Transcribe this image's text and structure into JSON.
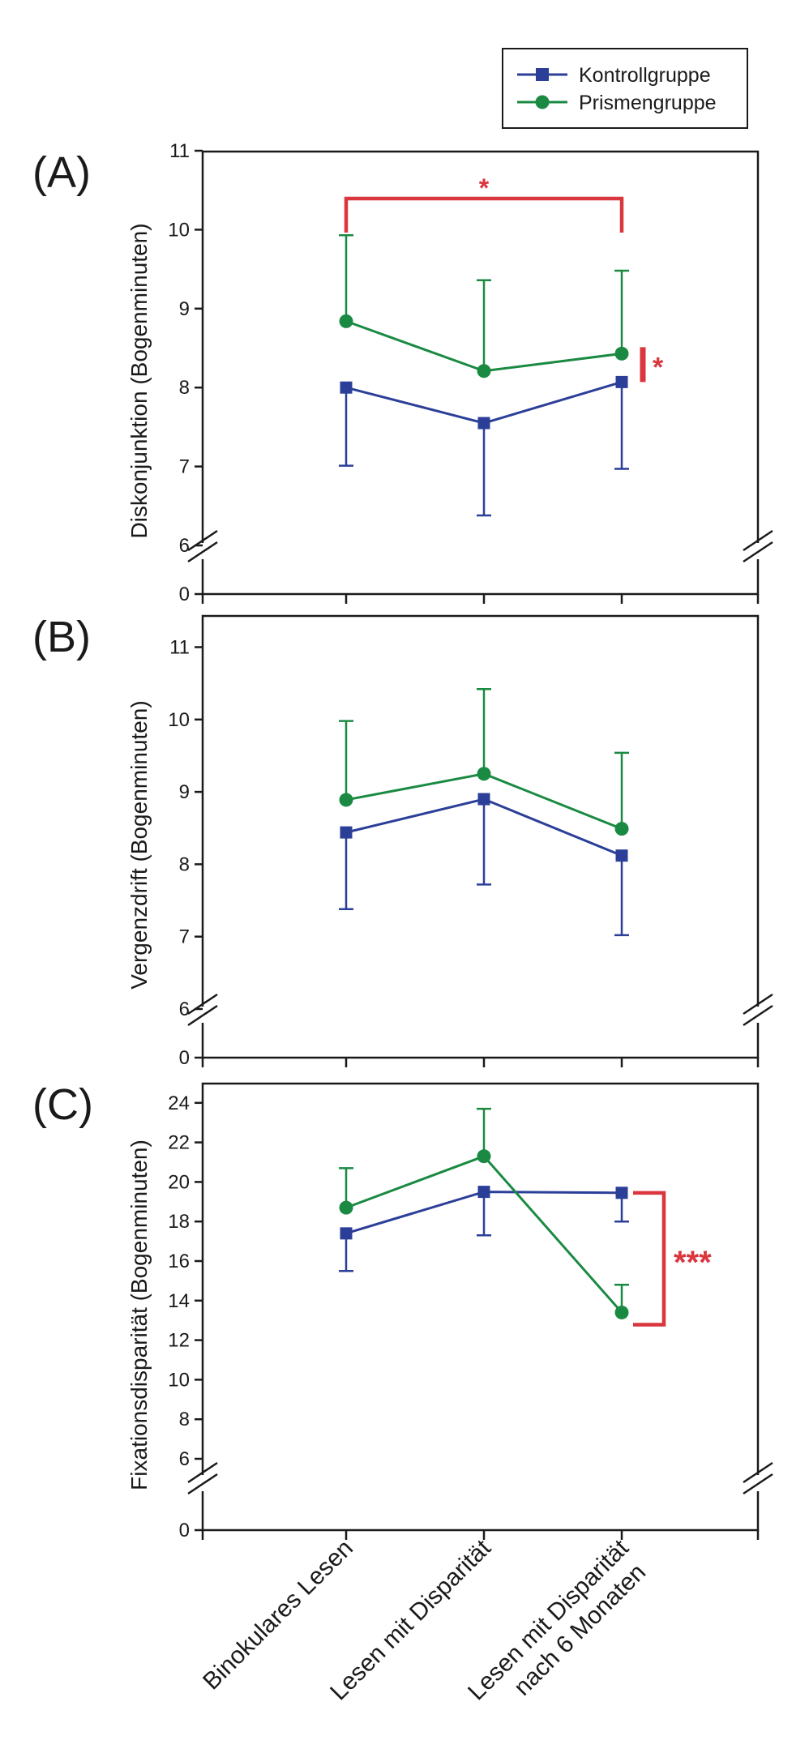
{
  "colors": {
    "kontroll": "#2b3f98",
    "prismen": "#1a8a42",
    "significance": "#d9363e",
    "axis": "#1a1a1a"
  },
  "legend": {
    "items": [
      {
        "label": "Kontrollgruppe",
        "marker": "square"
      },
      {
        "label": "Prismengruppe",
        "marker": "circle"
      }
    ]
  },
  "x_categories": [
    [
      "Binokulares Lesen"
    ],
    [
      "Lesen mit Disparität"
    ],
    [
      "Lesen mit Disparität",
      "nach 6 Monaten"
    ]
  ],
  "chart_data": [
    {
      "type": "line",
      "panel_label": "(A)",
      "ylabel": "Diskonjunktion (Bogenminuten)",
      "ylim": [
        6,
        11
      ],
      "yticks": [
        "6",
        "7",
        "8",
        "9",
        "10",
        "11"
      ],
      "axis_break": true,
      "zero_label": "0",
      "series": [
        {
          "name": "Kontrollgruppe",
          "values": [
            8.0,
            7.55,
            8.07
          ],
          "err_lower": [
            7.01,
            6.38,
            6.97
          ]
        },
        {
          "name": "Prismengruppe",
          "values": [
            8.84,
            8.21,
            8.43
          ],
          "err_upper": [
            9.93,
            9.36,
            9.48
          ]
        }
      ],
      "significance": [
        {
          "type": "bracket-top",
          "from": 0,
          "to": 2,
          "label": "*"
        },
        {
          "type": "bar-right",
          "at": 2,
          "label": "*"
        }
      ]
    },
    {
      "type": "line",
      "panel_label": "(B)",
      "ylabel": "Vergenzdrift (Bogenminuten)",
      "ylim": [
        6,
        11.5
      ],
      "yticks": [
        "6",
        "7",
        "8",
        "9",
        "10",
        "11"
      ],
      "axis_break": true,
      "zero_label": "0",
      "series": [
        {
          "name": "Kontrollgruppe",
          "values": [
            8.44,
            8.9,
            8.12
          ],
          "err_lower": [
            7.38,
            7.72,
            7.02
          ]
        },
        {
          "name": "Prismengruppe",
          "values": [
            8.89,
            9.25,
            8.49
          ],
          "err_upper": [
            9.98,
            10.42,
            9.54
          ]
        }
      ],
      "significance": []
    },
    {
      "type": "line",
      "panel_label": "(C)",
      "ylabel": "Fixationsdisparität (Bogenminuten)",
      "ylim": [
        6,
        25
      ],
      "yticks": [
        "6",
        "8",
        "10",
        "12",
        "14",
        "16",
        "18",
        "20",
        "22",
        "24"
      ],
      "axis_break": true,
      "zero_label": "0",
      "series": [
        {
          "name": "Kontrollgruppe",
          "values": [
            17.4,
            19.5,
            19.45
          ],
          "err_lower": [
            15.5,
            17.3,
            18.0
          ]
        },
        {
          "name": "Prismengruppe",
          "values": [
            18.7,
            21.3,
            13.4
          ],
          "err_upper": [
            20.7,
            23.7,
            14.8
          ]
        }
      ],
      "significance": [
        {
          "type": "bracket-right",
          "at": 2,
          "label": "***"
        }
      ]
    }
  ]
}
